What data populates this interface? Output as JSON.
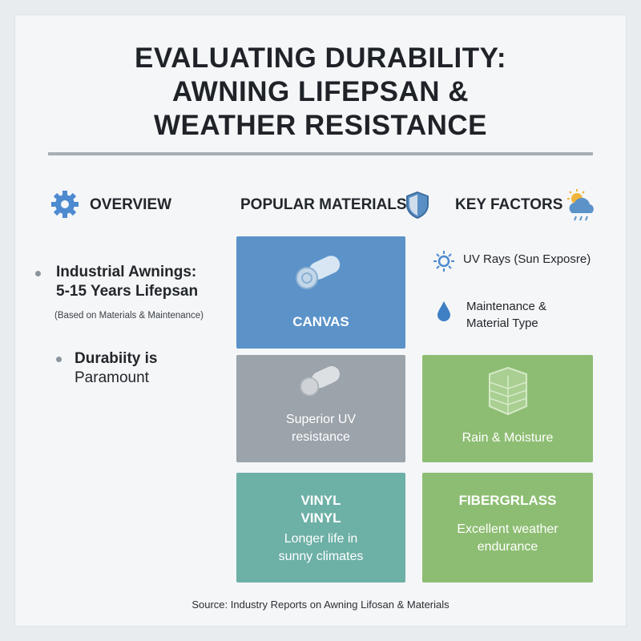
{
  "header": {
    "title_lines": [
      "EVALUATING DURABILITY:",
      "AWNING LIFEPSAN &",
      "WEATHER RESISTANCE"
    ]
  },
  "overview": {
    "heading": "OVERVIEW",
    "bullets": [
      {
        "lines": [
          "Industrial Awnings:",
          "5-15 Years Lifepsan"
        ],
        "note": "(Based on Materials & Maintenance)"
      },
      {
        "lines": [
          "Durabiity is",
          "Paramount"
        ]
      }
    ]
  },
  "materials": {
    "heading": "POPULAR MATERIALS",
    "cards": [
      {
        "lines": [
          "CANVAS"
        ]
      },
      {
        "lines": [
          "Superior UV",
          "resistance"
        ]
      },
      {
        "lines": [
          "VINYL",
          "VINYL",
          "Longer life in",
          "sunny climates"
        ]
      }
    ]
  },
  "factors": {
    "heading": "KEY FACTORS",
    "items": [
      {
        "lines": [
          "UV Rays (Sun Exposre)"
        ]
      },
      {
        "lines": [
          "Maintenance &",
          "Material Type"
        ]
      }
    ],
    "cards": [
      {
        "lines": [
          "Rain & Moisture"
        ]
      },
      {
        "lines": [
          "FIBERGRLASS",
          "Excellent weather",
          "endurance"
        ]
      }
    ]
  },
  "footer": {
    "source": "Source: Industry Reports on Awning Lifosan & Materials"
  }
}
